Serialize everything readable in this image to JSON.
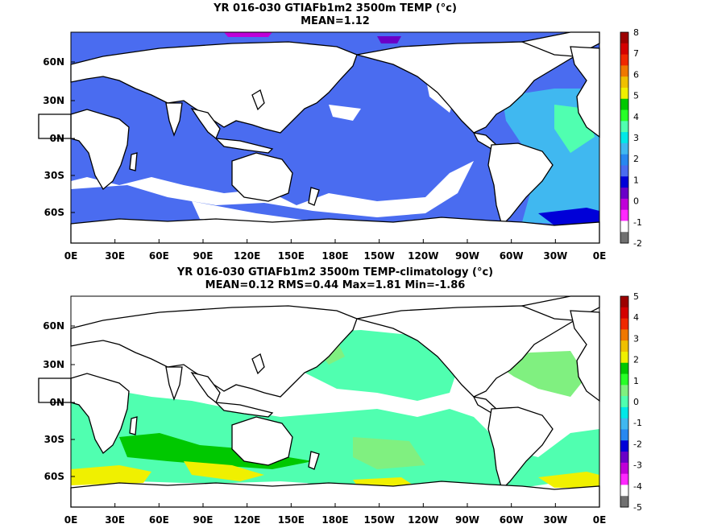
{
  "panels": [
    {
      "title_line1": "YR 016-030 GTIAFb1m2 3500m TEMP (°c)",
      "title_line2": "MEAN=1.12",
      "colorbar": {
        "labels": [
          "8",
          "7",
          "6",
          "5",
          "4",
          "3",
          "2",
          "1",
          "0",
          "-1",
          "-2"
        ],
        "colors": [
          "#9c0000",
          "#d40000",
          "#f02800",
          "#f07800",
          "#f0c000",
          "#f0f000",
          "#00c800",
          "#28ff28",
          "#50ffb0",
          "#00e8e8",
          "#40b8f0",
          "#2888f0",
          "#4a6cf0",
          "#0000d8",
          "#6a00c8",
          "#c000d8",
          "#ff28ff",
          "#ffffff",
          "#707070"
        ]
      }
    },
    {
      "title_line1": "YR 016-030 GTIAFb1m2 3500m TEMP-climatology (°c)",
      "title_line2": "MEAN=0.12   RMS=0.44   Max=1.81   Min=-1.86",
      "colorbar": {
        "labels": [
          "5",
          "4",
          "3",
          "2",
          "1",
          "0",
          "-1",
          "-2",
          "-3",
          "-4",
          "-5"
        ],
        "colors": [
          "#9c0000",
          "#d40000",
          "#f02800",
          "#f07800",
          "#f0c000",
          "#f0f000",
          "#00c800",
          "#28ff28",
          "#80f080",
          "#50ffb0",
          "#00e8e8",
          "#40b8f0",
          "#2888f0",
          "#0000d8",
          "#6a00c8",
          "#c000d8",
          "#ff28ff",
          "#ffffff",
          "#707070"
        ]
      }
    }
  ],
  "lat_labels": [
    "60N",
    "30N",
    "0N",
    "30S",
    "60S"
  ],
  "lon_labels": [
    "0E",
    "30E",
    "60E",
    "90E",
    "120E",
    "150E",
    "180E",
    "150W",
    "120W",
    "90W",
    "60W",
    "30W",
    "0E"
  ],
  "fields": {
    "top": {
      "ocean": "#4a6cf0",
      "atlantic": "#40b8f0",
      "atlantic_accent": "#50ffb0",
      "southern_gaps": "#ffffff",
      "weddell": "#0000d8",
      "arctic": "#c000d8"
    },
    "bottom": {
      "ocean": "#50ffb0",
      "southern_belt": "#00c800",
      "southern_warm": "#f0f000",
      "north_pacific": "#80f080"
    }
  }
}
